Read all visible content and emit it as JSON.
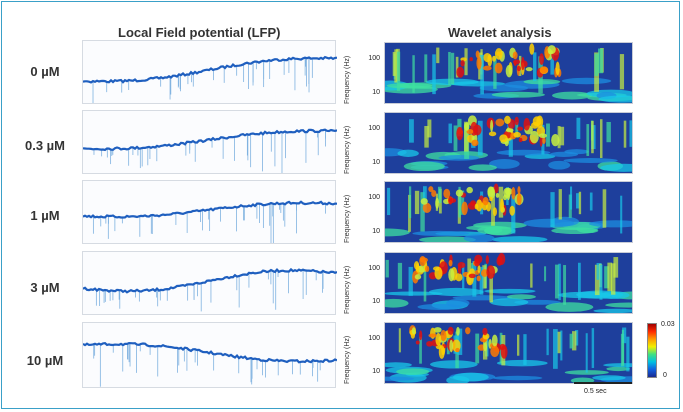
{
  "titles": {
    "lfp": "Local Field potential (LFP)",
    "wavelet": "Wavelet analysis"
  },
  "rows": [
    {
      "conc": "0 µM"
    },
    {
      "conc": "0.3 µM"
    },
    {
      "conc": "1 µM"
    },
    {
      "conc": "3 µM"
    },
    {
      "conc": "10 µM"
    }
  ],
  "wavelet_axis": {
    "ylabel": "Frequency (Hz)",
    "tick_high": "100",
    "tick_low": "10"
  },
  "colorbar": {
    "max_label": "0.03",
    "min_label": "0"
  },
  "scale_bar": {
    "label": "0.5 sec"
  },
  "colors": {
    "frame": "#3aa0c8",
    "trace": "#1f5fbf",
    "spike": "#7fb2e0",
    "wavelet_bg": "#1e3f9c"
  }
}
